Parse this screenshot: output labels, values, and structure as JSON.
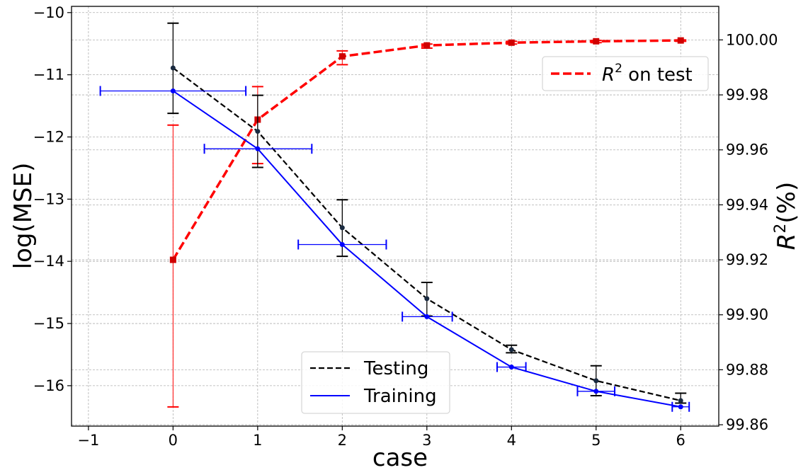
{
  "chart_data": {
    "type": "line",
    "xlabel": "case",
    "ylabel_left": "log(MSE)",
    "ylabel_right": "R^2(%)",
    "xlim": [
      -1.2,
      6.45
    ],
    "ylim_left": [
      -16.65,
      -9.9
    ],
    "ylim_right": [
      99.8595,
      100.0122
    ],
    "grid": true,
    "x_ticks": [
      -1,
      0,
      1,
      2,
      3,
      4,
      5,
      6
    ],
    "x_tick_labels": [
      "−1",
      "0",
      "1",
      "2",
      "3",
      "4",
      "5",
      "6"
    ],
    "y_left_ticks": [
      -10,
      -11,
      -12,
      -13,
      -14,
      -15,
      -16
    ],
    "y_left_tick_labels": [
      "−10",
      "−11",
      "−12",
      "−13",
      "−14",
      "−15",
      "−16"
    ],
    "y_right_ticks": [
      100.0,
      99.98,
      99.96,
      99.94,
      99.92,
      99.9,
      99.88,
      99.86
    ],
    "y_right_tick_labels": [
      "100.00",
      "99.98",
      "99.96",
      "99.94",
      "99.92",
      "99.90",
      "99.88",
      "99.86"
    ],
    "series": [
      {
        "name": "Testing",
        "axis": "left",
        "color": "#000000",
        "style": "dashed",
        "x": [
          0,
          1,
          2,
          3,
          4,
          5,
          6
        ],
        "y": [
          -10.89,
          -11.91,
          -13.46,
          -14.6,
          -15.42,
          -15.92,
          -16.24
        ],
        "yerr_low": [
          -11.62,
          -12.49,
          -13.92,
          -14.88,
          -15.47,
          -16.16,
          -16.28
        ],
        "yerr_high": [
          -10.17,
          -11.33,
          -13.01,
          -14.34,
          -15.35,
          -15.68,
          -16.12
        ]
      },
      {
        "name": "Training",
        "axis": "left",
        "color": "#0000ff",
        "style": "solid",
        "x": [
          0,
          1,
          2,
          3,
          4,
          5,
          6
        ],
        "y": [
          -11.26,
          -12.19,
          -13.73,
          -14.89,
          -15.7,
          -16.09,
          -16.34
        ],
        "xerr_low": [
          -0.86,
          0.37,
          1.48,
          2.71,
          3.83,
          4.78,
          5.9
        ],
        "xerr_high": [
          0.86,
          1.64,
          2.52,
          3.3,
          4.17,
          5.22,
          6.1
        ]
      },
      {
        "name": "R^2 on test",
        "axis": "right",
        "color": "#ff0000",
        "style": "dashed",
        "x": [
          0,
          1,
          2,
          3,
          4,
          5,
          6
        ],
        "y": [
          99.92,
          99.971,
          99.994,
          99.998,
          99.999,
          99.9995,
          99.9998
        ],
        "yerr_low": [
          99.8665,
          99.955,
          99.991,
          99.997,
          99.9985,
          99.999,
          99.9995
        ],
        "yerr_high": [
          99.969,
          99.983,
          99.996,
          99.9985,
          99.9995,
          99.9998,
          100.0
        ]
      }
    ],
    "legends": {
      "left": {
        "placement": "lower-center",
        "entries": [
          "Testing",
          "Training"
        ]
      },
      "right": {
        "placement": "upper-right",
        "prefix": "R",
        "sup": "2",
        "suffix": " on test"
      }
    }
  }
}
